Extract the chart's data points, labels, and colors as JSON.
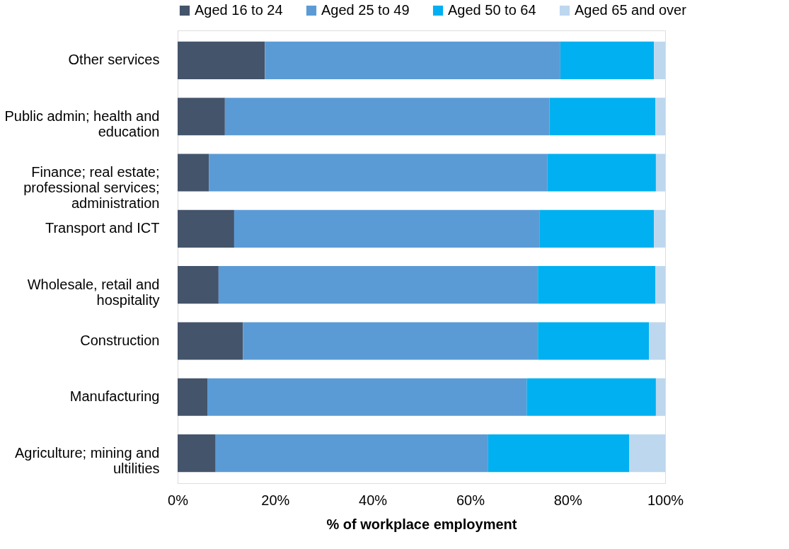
{
  "chart_data": {
    "type": "bar",
    "orientation": "horizontal",
    "stacked": true,
    "xlabel": "% of workplace employment",
    "categories": [
      "Other services",
      "Public admin; health and education",
      "Finance; real estate; professional services; administration",
      "Transport and ICT",
      "Wholesale, retail and hospitality",
      "Construction",
      "Manufacturing",
      "Agriculture; mining and ultilities"
    ],
    "series": [
      {
        "name": "Aged 16 to 24",
        "color": "#44546a",
        "values": [
          17.9,
          9.7,
          6.4,
          11.6,
          8.4,
          13.4,
          6.1,
          7.8
        ]
      },
      {
        "name": "Aged 25 to 49",
        "color": "#5b9bd5",
        "values": [
          60.6,
          66.6,
          69.4,
          62.6,
          65.5,
          60.5,
          65.5,
          55.9
        ]
      },
      {
        "name": "Aged 50 to 64",
        "color": "#00b0f0",
        "values": [
          19.2,
          21.7,
          22.3,
          23.5,
          24.1,
          22.8,
          26.5,
          28.9
        ]
      },
      {
        "name": "Aged 65 and over",
        "color": "#bdd7ee",
        "values": [
          2.3,
          2.0,
          1.9,
          2.3,
          2.0,
          3.3,
          1.9,
          7.4
        ]
      }
    ],
    "xlim": [
      0,
      100
    ],
    "xticks": [
      {
        "value": 0,
        "label": "0%"
      },
      {
        "value": 20,
        "label": "20%"
      },
      {
        "value": 40,
        "label": "40%"
      },
      {
        "value": 60,
        "label": "60%"
      },
      {
        "value": 80,
        "label": "80%"
      },
      {
        "value": 100,
        "label": "100%"
      }
    ],
    "grid": false,
    "legend": "top"
  }
}
